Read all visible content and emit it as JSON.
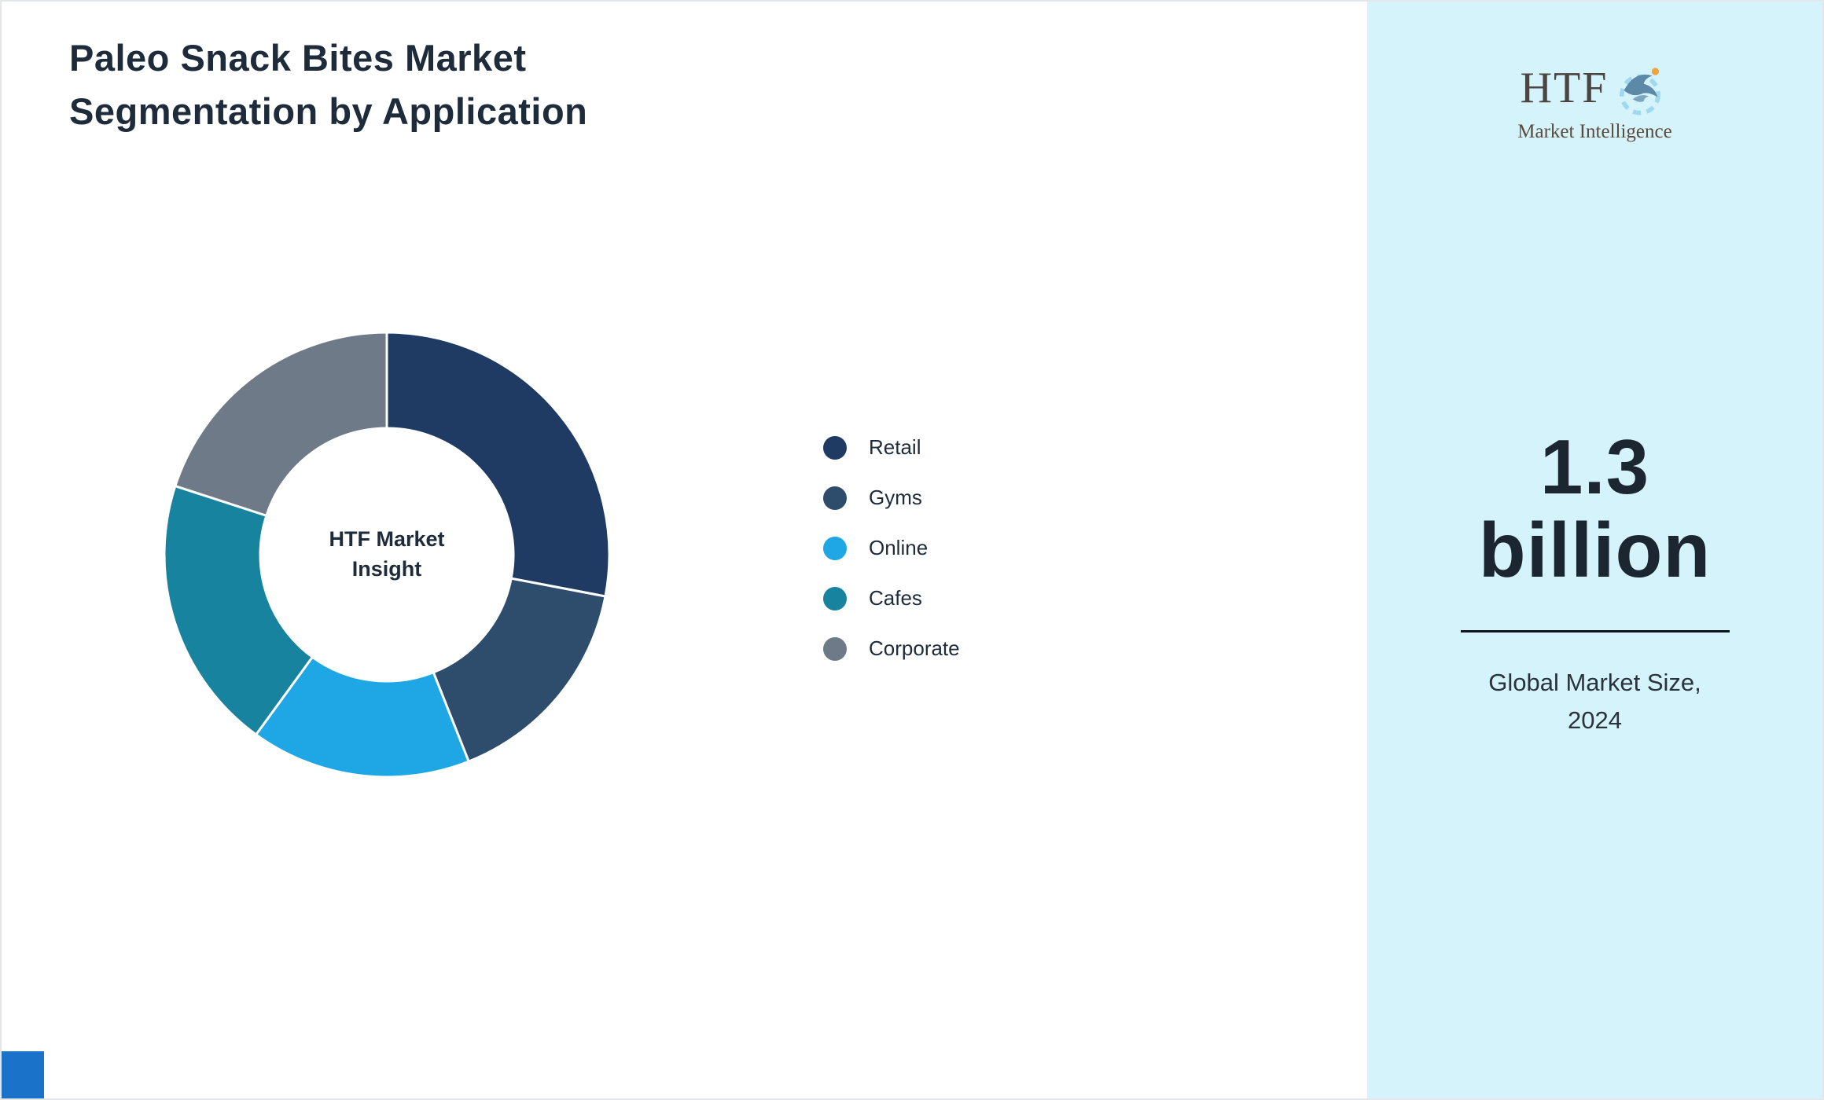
{
  "title": "Paleo Snack Bites Market\nSegmentation by Application",
  "chart_data": {
    "type": "pie",
    "variant": "donut",
    "title": "Paleo Snack Bites Market Segmentation by Application",
    "center_label": "HTF Market\nInsight",
    "legend_position": "right",
    "start_angle_deg": 0,
    "direction": "clockwise",
    "categories": [
      "Retail",
      "Gyms",
      "Online",
      "Cafes",
      "Corporate"
    ],
    "values": [
      28,
      16,
      16,
      20,
      20
    ],
    "series": [
      {
        "label": "Retail",
        "value": 28,
        "color": "#1f3b63"
      },
      {
        "label": "Gyms",
        "value": 16,
        "color": "#2e4d6d"
      },
      {
        "label": "Online",
        "value": 16,
        "color": "#1ea7e4"
      },
      {
        "label": "Cafes",
        "value": 20,
        "color": "#17839e"
      },
      {
        "label": "Corporate",
        "value": 20,
        "color": "#6e7a87"
      }
    ]
  },
  "sidebar": {
    "background_color": "#d5f3fb",
    "logo": {
      "text": "HTF",
      "subtext": "Market Intelligence"
    },
    "market_size_value": "1.3\nbillion",
    "market_size_label": "Global Market Size,\n2024"
  },
  "accents": {
    "footer_accent_color": "#1a73c9"
  }
}
